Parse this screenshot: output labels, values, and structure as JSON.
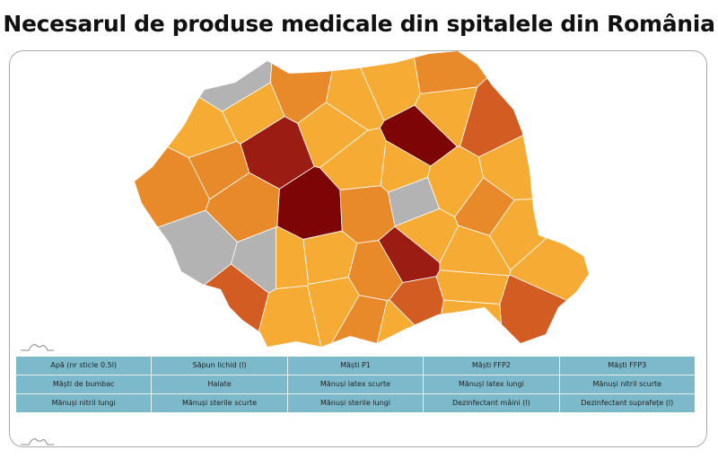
{
  "title": "Necesarul de produse medicale din spitalele din România",
  "map": {
    "level_colors": [
      "#b3b3b3",
      "#f6ab35",
      "#e8892a",
      "#d25c22",
      "#9a1c12",
      "#7e0505"
    ],
    "border_color": "#ffffff"
  },
  "buttons": [
    "Apă (nr sticle 0.5l)",
    "Săpun lichid (l)",
    "Măști P1",
    "Măști FFP2",
    "Măști FFP3",
    "Măști de bumbac",
    "Halate",
    "Mănuși latex scurte",
    "Mănuși latex lungi",
    "Mănuși nitril scurte",
    "Mănuși nitril lungi",
    "Mănuși sterile scurte",
    "Mănuși sterile lungi",
    "Dezinfectant mâini (l)",
    "Dezinfectant suprafețe (l)"
  ],
  "icons": [
    "mountain-logo-icon",
    "mountain-logo-icon"
  ]
}
